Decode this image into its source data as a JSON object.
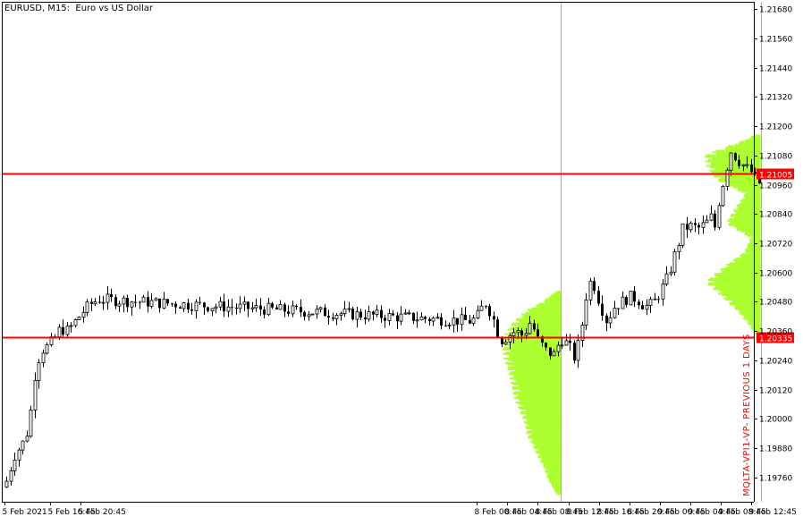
{
  "window": {
    "title": "EURUSD, M15:  Euro vs US Dollar"
  },
  "colors": {
    "background": "#ffffff",
    "candle": "#000000",
    "volume_profile": "#adff2f",
    "price_line": "#ff0000",
    "period_separator": "#9acd32",
    "label_text": "#ffffff",
    "indicator_text": "#ff0000"
  },
  "indicator": {
    "label": "MQLTA-VPI1-VP- PREVIOUS 1 DAYS",
    "upper_level_label": "1.21005",
    "lower_level_label": "1.20335"
  },
  "chart_data": {
    "type": "candlestick",
    "symbol": "EURUSD",
    "timeframe": "M15",
    "ylim": [
      1.1966,
      1.2171
    ],
    "y_ticks": [
      "1.21680",
      "1.21560",
      "1.21440",
      "1.21320",
      "1.21200",
      "1.21080",
      "1.20960",
      "1.20840",
      "1.20720",
      "1.20600",
      "1.20480",
      "1.20360",
      "1.20240",
      "1.20120",
      "1.20000",
      "1.19880",
      "1.19760"
    ],
    "x_ticks": [
      "5 Feb 2021",
      "5 Feb 16:45",
      "5 Feb 20:45",
      "8 Feb 00:45",
      "8 Feb 04:45",
      "8 Feb 08:45",
      "8 Feb 12:45",
      "8 Feb 16:45",
      "8 Feb 20:45",
      "9 Feb 00:45",
      "9 Feb 04:45",
      "9 Feb 08:45",
      "9 Feb 12:45"
    ],
    "levels": [
      1.21005,
      1.20335
    ],
    "period_separators": [
      "8 Feb 11:45",
      "9 Feb 14:00"
    ],
    "close_path": [
      [
        "5 Feb 2021",
        1.1972
      ],
      [
        "5 Feb 12:00",
        1.1985
      ],
      [
        "5 Feb 13:30",
        1.1992
      ],
      [
        "5 Feb 14:15",
        1.2005
      ],
      [
        "5 Feb 14:45",
        1.202
      ],
      [
        "5 Feb 15:30",
        1.2028
      ],
      [
        "5 Feb 16:30",
        1.203
      ],
      [
        "5 Feb 17:15",
        1.2033
      ],
      [
        "5 Feb 18:00",
        1.2037
      ],
      [
        "5 Feb 19:00",
        1.2036
      ],
      [
        "5 Feb 20:00",
        1.204
      ],
      [
        "5 Feb 21:00",
        1.2044
      ],
      [
        "5 Feb 22:00",
        1.2047
      ],
      [
        "5 Feb 23:00",
        1.2049
      ],
      [
        "8 Feb 00:00",
        1.204
      ],
      [
        "8 Feb 00:45",
        1.2042
      ],
      [
        "8 Feb 01:45",
        1.2048
      ],
      [
        "8 Feb 02:45",
        1.2042
      ],
      [
        "8 Feb 03:45",
        1.2032
      ],
      [
        "8 Feb 04:45",
        1.2034
      ],
      [
        "8 Feb 05:45",
        1.2036
      ],
      [
        "8 Feb 06:45",
        1.2034
      ],
      [
        "8 Feb 07:45",
        1.204
      ],
      [
        "8 Feb 08:45",
        1.2032
      ],
      [
        "8 Feb 09:45",
        1.2028
      ],
      [
        "8 Feb 10:45",
        1.2026
      ],
      [
        "8 Feb 11:45",
        1.2033
      ],
      [
        "8 Feb 12:45",
        1.203
      ],
      [
        "8 Feb 13:30",
        1.2025
      ],
      [
        "8 Feb 14:15",
        1.2033
      ],
      [
        "8 Feb 15:00",
        1.205
      ],
      [
        "8 Feb 15:45",
        1.2058
      ],
      [
        "8 Feb 16:45",
        1.2048
      ],
      [
        "8 Feb 17:45",
        1.204
      ],
      [
        "8 Feb 18:45",
        1.2046
      ],
      [
        "8 Feb 19:45",
        1.2048
      ],
      [
        "8 Feb 20:45",
        1.205
      ],
      [
        "8 Feb 21:45",
        1.2049
      ],
      [
        "8 Feb 22:45",
        1.2046
      ],
      [
        "8 Feb 23:45",
        1.2047
      ],
      [
        "9 Feb 00:45",
        1.2052
      ],
      [
        "9 Feb 01:45",
        1.2058
      ],
      [
        "9 Feb 02:45",
        1.2068
      ],
      [
        "9 Feb 03:45",
        1.2078
      ],
      [
        "9 Feb 04:45",
        1.2079
      ],
      [
        "9 Feb 05:45",
        1.2078
      ],
      [
        "9 Feb 06:45",
        1.208
      ],
      [
        "9 Feb 07:30",
        1.2083
      ],
      [
        "9 Feb 08:00",
        1.2078
      ],
      [
        "9 Feb 08:30",
        1.209
      ],
      [
        "9 Feb 09:15",
        1.21
      ],
      [
        "9 Feb 10:00",
        1.211
      ],
      [
        "9 Feb 11:00",
        1.2106
      ],
      [
        "9 Feb 12:00",
        1.2103
      ],
      [
        "9 Feb 12:45",
        1.2101
      ],
      [
        "9 Feb 13:30",
        1.2097
      ],
      [
        "9 Feb 14:15",
        1.2096
      ]
    ],
    "volume_profiles": [
      {
        "period": "8 Feb",
        "start": "8 Feb 04:00",
        "end": "8 Feb 11:45",
        "price_low": 1.1969,
        "price_high": 1.2052,
        "profile": [
          [
            1.1969,
            0.08
          ],
          [
            1.1975,
            0.22
          ],
          [
            1.198,
            0.3
          ],
          [
            1.1987,
            0.45
          ],
          [
            1.1993,
            0.58
          ],
          [
            1.1998,
            0.62
          ],
          [
            1.2004,
            0.72
          ],
          [
            1.201,
            0.82
          ],
          [
            1.2016,
            0.86
          ],
          [
            1.2022,
            0.94
          ],
          [
            1.2028,
            1.0
          ],
          [
            1.2033,
            0.98
          ],
          [
            1.2039,
            0.84
          ],
          [
            1.2044,
            0.6
          ],
          [
            1.2048,
            0.3
          ],
          [
            1.2052,
            0.08
          ]
        ]
      },
      {
        "period": "9 Feb",
        "start": "9 Feb 06:30",
        "end": "9 Feb 14:00",
        "price_low": 1.2033,
        "price_high": 1.2116,
        "profile": [
          [
            1.2033,
            0.05
          ],
          [
            1.2038,
            0.2
          ],
          [
            1.2044,
            0.42
          ],
          [
            1.205,
            0.7
          ],
          [
            1.2056,
            0.98
          ],
          [
            1.2062,
            0.66
          ],
          [
            1.2068,
            0.3
          ],
          [
            1.2074,
            0.18
          ],
          [
            1.208,
            0.62
          ],
          [
            1.2086,
            0.46
          ],
          [
            1.2092,
            0.28
          ],
          [
            1.2098,
            0.8
          ],
          [
            1.2103,
            0.95
          ],
          [
            1.2108,
            1.0
          ],
          [
            1.2113,
            0.4
          ],
          [
            1.2116,
            0.1
          ]
        ]
      }
    ]
  }
}
